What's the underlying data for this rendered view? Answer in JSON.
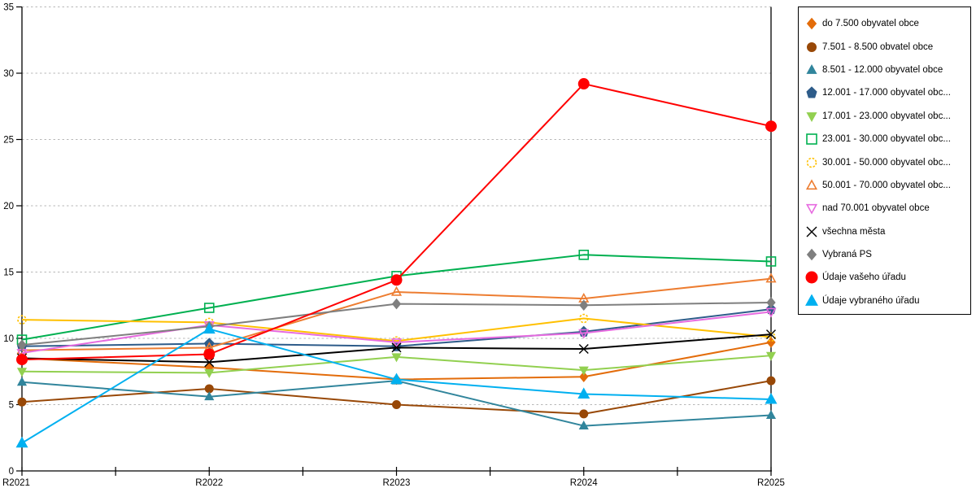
{
  "chart_data": {
    "type": "line",
    "title": "",
    "xlabel": "",
    "ylabel": "",
    "categories": [
      "R2021",
      "R2022",
      "R2023",
      "R2024",
      "R2025"
    ],
    "ylim": [
      0,
      35
    ],
    "yticks": [
      0,
      5,
      10,
      15,
      20,
      25,
      30,
      35
    ],
    "grid": "horizontal-dashed",
    "grid_color": "#b8b8b8",
    "axis_color": "#000000",
    "legend_position": "right",
    "series": [
      {
        "name": "do 7.500 obyvatel obce",
        "label": "do 7.500 obyvatel obce",
        "color": "#E36C0A",
        "marker": "diamond",
        "filled": true,
        "dashed": false,
        "size": 5,
        "values": [
          8.5,
          7.8,
          6.9,
          7.1,
          9.7
        ]
      },
      {
        "name": "7.501 - 8.500 obvatel obce",
        "label": "7.501 - 8.500 obvatel obce",
        "color": "#984807",
        "marker": "circle",
        "filled": true,
        "dashed": false,
        "size": 5,
        "values": [
          5.2,
          6.2,
          5.0,
          4.3,
          6.8
        ]
      },
      {
        "name": "8.501 - 12.000 obyvatel obce",
        "label": "8.501 - 12.000 obyvatel obce",
        "color": "#31859C",
        "marker": "triangle-up",
        "filled": true,
        "dashed": false,
        "size": 5.5,
        "values": [
          6.7,
          5.6,
          6.8,
          3.4,
          4.2
        ]
      },
      {
        "name": "12.001 - 17.000 obyvatel obce",
        "label": "12.001 - 17.000 obyvatel obc...",
        "color": "#2E5C8A",
        "marker": "pentagon",
        "filled": true,
        "dashed": false,
        "size": 5.5,
        "values": [
          9.4,
          9.6,
          9.4,
          10.5,
          12.2
        ]
      },
      {
        "name": "17.001 - 23.000 obyvatel obce",
        "label": "17.001 - 23.000 obyvatel obc...",
        "color": "#92D050",
        "marker": "triangle-down",
        "filled": true,
        "dashed": false,
        "size": 5.5,
        "values": [
          7.5,
          7.4,
          8.6,
          7.6,
          8.7
        ]
      },
      {
        "name": "23.001 - 30.000 obyvatel obce",
        "label": "23.001 - 30.000 obyvatel obc...",
        "color": "#00B050",
        "marker": "square",
        "filled": false,
        "dashed": false,
        "size": 5.5,
        "values": [
          9.9,
          12.3,
          14.7,
          16.3,
          15.8
        ]
      },
      {
        "name": "30.001 - 50.000 obyvatel obce",
        "label": "30.001 - 50.000 obyvatel obc...",
        "color": "#FFC000",
        "marker": "circle",
        "filled": false,
        "dashed": true,
        "size": 5,
        "values": [
          11.4,
          11.2,
          9.8,
          11.5,
          10.1
        ]
      },
      {
        "name": "50.001 - 70.000 obyvatel obce",
        "label": "50.001 - 70.000 obyvatel obc...",
        "color": "#ED7D31",
        "marker": "triangle-up",
        "filled": false,
        "dashed": false,
        "size": 5.5,
        "values": [
          9.1,
          9.3,
          13.5,
          13.0,
          14.5
        ]
      },
      {
        "name": "nad 70.001 obyvatel obce",
        "label": "nad 70.001 obyvatel obce",
        "color": "#E76BE0",
        "marker": "triangle-down",
        "filled": false,
        "dashed": false,
        "size": 5.5,
        "values": [
          8.9,
          11.0,
          9.7,
          10.4,
          12.0
        ]
      },
      {
        "name": "všechna města",
        "label": "všechna města",
        "color": "#000000",
        "marker": "x",
        "filled": true,
        "dashed": false,
        "size": 5.5,
        "values": [
          8.5,
          8.2,
          9.3,
          9.2,
          10.3
        ]
      },
      {
        "name": "Vybraná PS",
        "label": "Vybraná PS",
        "color": "#7F7F7F",
        "marker": "diamond",
        "filled": true,
        "dashed": false,
        "size": 5,
        "values": [
          9.5,
          10.9,
          12.6,
          12.5,
          12.7
        ]
      },
      {
        "name": "Údaje vašeho úřadu",
        "label": "Údaje vašeho úřadu",
        "color": "#FF0000",
        "marker": "circle",
        "filled": true,
        "dashed": false,
        "size": 6.5,
        "values": [
          8.4,
          8.8,
          14.4,
          29.2,
          26.0
        ]
      },
      {
        "name": "Údaje vybraného úřadu",
        "label": "Údaje vybraného úřadu",
        "color": "#00B0F0",
        "marker": "triangle-up",
        "filled": true,
        "dashed": false,
        "size": 7,
        "values": [
          2.1,
          10.7,
          6.9,
          5.8,
          5.4
        ]
      }
    ]
  }
}
